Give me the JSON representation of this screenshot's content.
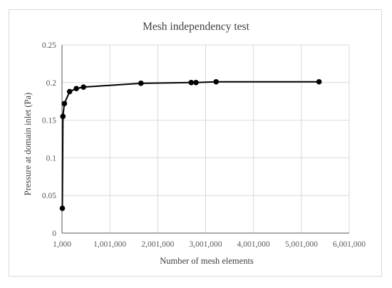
{
  "chart_data": {
    "type": "scatter",
    "title": "Mesh independency  test",
    "xlabel": "Number of mesh elements",
    "ylabel": "Pressure at domain inlet (Pa)",
    "xlim": [
      1000,
      6001000
    ],
    "ylim": [
      0,
      0.25
    ],
    "x_ticks": [
      1000,
      1001000,
      2001000,
      3001000,
      4001000,
      5001000,
      6001000
    ],
    "x_tick_labels": [
      "1,000",
      "1,001,000",
      "2,001,000",
      "3,001,000",
      "4,001,000",
      "5,001,000",
      "6,001,000"
    ],
    "y_ticks": [
      0,
      0.05,
      0.1,
      0.15,
      0.2,
      0.25
    ],
    "y_tick_labels": [
      "0",
      "0.05",
      "0.1",
      "0.15",
      "0.2",
      "0.25"
    ],
    "grid": true,
    "legend": "none",
    "line_color": "#000000",
    "grid_color": "#d9d9d9",
    "series": [
      {
        "x": [
          8000,
          20000,
          50000,
          160000,
          300000,
          450000,
          1650000,
          2700000,
          2800000,
          3220000,
          5370000
        ],
        "y": [
          0.033,
          0.155,
          0.172,
          0.188,
          0.192,
          0.194,
          0.199,
          0.2,
          0.2,
          0.201,
          0.201
        ]
      }
    ]
  }
}
